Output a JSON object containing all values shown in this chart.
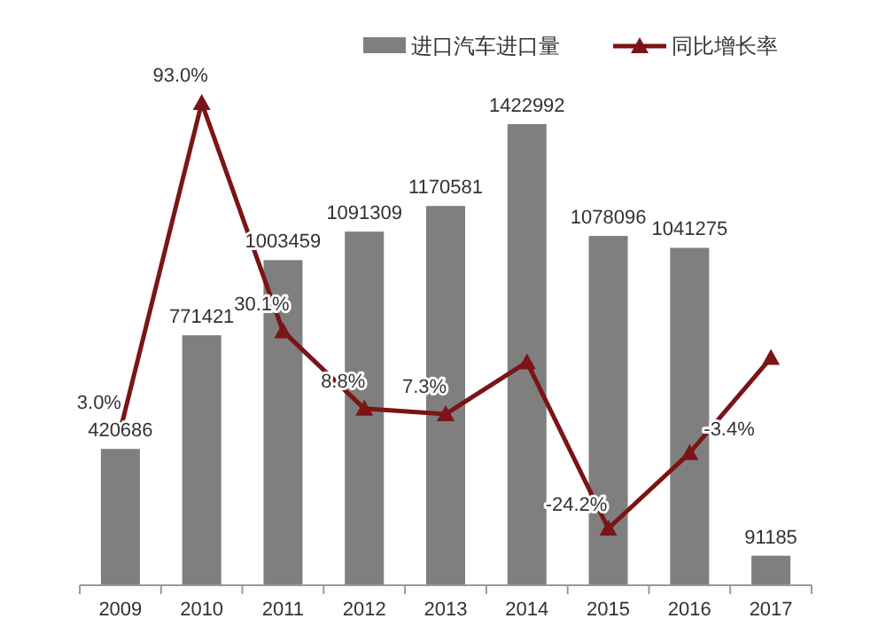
{
  "chart_data": {
    "type": "bar",
    "categories": [
      "2009",
      "2010",
      "2011",
      "2012",
      "2013",
      "2014",
      "2015",
      "2016",
      "2017"
    ],
    "legend": "top right",
    "series": [
      {
        "name": "进口汽车进口量",
        "color": "#7f7f7f",
        "values": [
          420686,
          771421,
          1003459,
          1091309,
          1170581,
          1422992,
          1078096,
          1041275,
          91185
        ],
        "value_labels": [
          "420686",
          "771421",
          "1003459",
          "1091309",
          "1170581",
          "1422992",
          "1078096",
          "1041275",
          "91185"
        ]
      },
      {
        "name": "同比增长率",
        "type": "line",
        "axis": "y2",
        "color": "#7b1416",
        "marker": "triangle",
        "values": [
          3.0,
          93.0,
          30.1,
          8.8,
          7.3,
          21.6,
          -24.2,
          -3.4,
          22.8
        ],
        "value_labels": [
          "3.0%",
          "93.0%",
          "30.1%",
          "8.8%",
          "7.3%",
          null,
          "-24.2%",
          "-3.4%",
          null
        ]
      }
    ]
  }
}
